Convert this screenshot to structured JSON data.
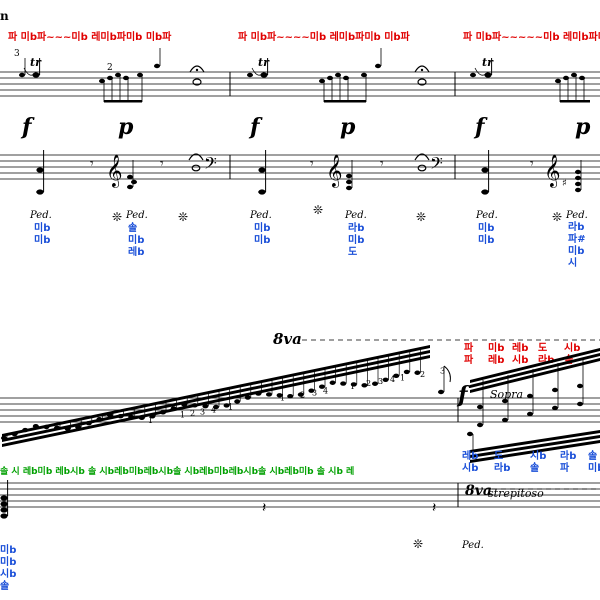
{
  "header_mark": "n",
  "system1": {
    "top_labels": [
      "파 미b파~~~미b  레미b파미b 미b파",
      "파 미b파~~~~미b  레미b파미b 미b파",
      "파 미b파~~~~~미b  레미b파미b 미b파"
    ],
    "trill": "tr",
    "fingering_3": "3",
    "fingering_2": "2",
    "dynamics": [
      "f",
      "p",
      "f",
      "p",
      "f",
      "p"
    ],
    "pedal_text": "Ped.",
    "pedal_release": "❊",
    "bass_stacks": [
      [
        "미b",
        "미b"
      ],
      [
        "솔",
        "미b",
        "레b"
      ],
      [
        "미b",
        "미b"
      ],
      [
        "라b",
        "미b",
        "도"
      ],
      [
        "미b",
        "미b"
      ],
      [
        "라b",
        "파#",
        "미b",
        "시"
      ]
    ]
  },
  "system2": {
    "ottava": "8va",
    "scale_label": "솔 시 레b미b 레b시b  솔  시b레b미b레b시b솔 시b레b미b레b시b솔 시b레b미b 솔 시b 레",
    "fingerings": [
      "1",
      "2",
      "3",
      "4",
      "1",
      "1",
      "1",
      "2",
      "3",
      "4",
      "1",
      "2",
      "3",
      "4",
      "1",
      "2",
      "3"
    ],
    "dynamic": "f",
    "sopra": "Sopra",
    "strepitoso": "strepitoso",
    "ottava_low": "8va",
    "red_cols": [
      [
        "파",
        "파"
      ],
      [
        "미b",
        "레b"
      ],
      [
        "레b",
        "시b"
      ],
      [
        "도",
        "라b"
      ],
      [
        "시b",
        "솔"
      ]
    ],
    "blue_cols": [
      [
        "레b",
        "시b"
      ],
      [
        "도",
        "라b"
      ],
      [
        "시b",
        "솔"
      ],
      [
        "라b",
        "파"
      ],
      [
        "솔",
        "미b"
      ]
    ],
    "left_stack": [
      "미b",
      "미b",
      "시b",
      "솔"
    ],
    "pedal_text": "Ped.",
    "pedal_release": "❊"
  }
}
